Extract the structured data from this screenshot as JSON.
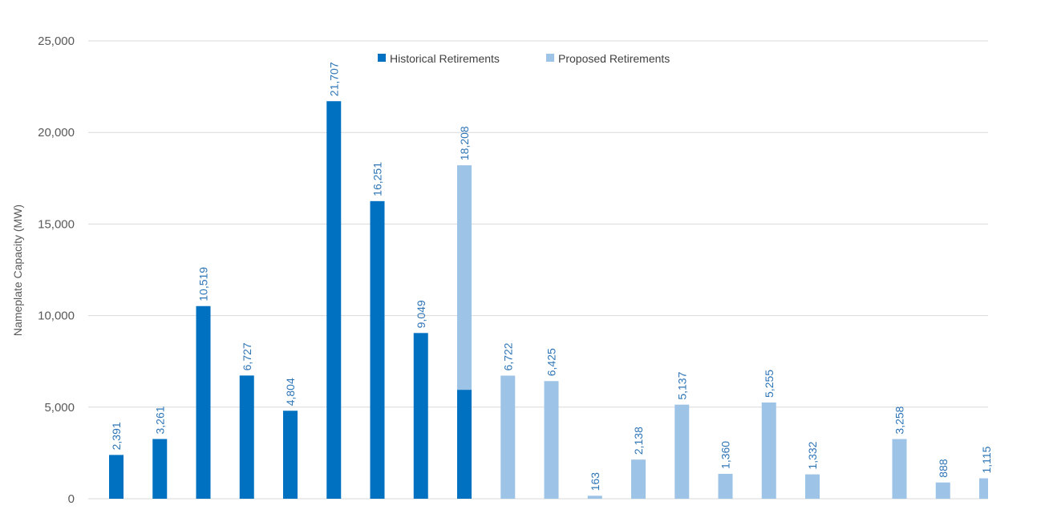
{
  "chart_data": {
    "type": "bar",
    "stacked": true,
    "title": "",
    "xlabel": "",
    "ylabel": "Nameplate Capacity (MW)",
    "ylim": [
      0,
      25000
    ],
    "yticks": [
      0,
      5000,
      10000,
      15000,
      20000,
      25000
    ],
    "ytick_labels": [
      "0",
      "5,000",
      "10,000",
      "15,000",
      "20,000",
      "25,000"
    ],
    "grid": true,
    "legend_position": "top-center",
    "colors": {
      "historical": "#0070C0",
      "proposed": "#9DC3E6",
      "data_label": "#2E75B6"
    },
    "series": [
      {
        "name": "Historical Retirements",
        "values": [
          2391,
          3261,
          10519,
          6727,
          4804,
          21707,
          16251,
          9049,
          5950,
          0,
          0,
          0,
          0,
          0,
          0,
          0,
          0,
          0,
          0,
          0,
          0
        ]
      },
      {
        "name": "Proposed Retirements",
        "values": [
          0,
          0,
          0,
          0,
          0,
          0,
          0,
          0,
          12258,
          6722,
          6425,
          163,
          2138,
          5137,
          1360,
          5255,
          1332,
          0,
          3258,
          888,
          1115
        ]
      }
    ],
    "data_labels": [
      "2,391",
      "3,261",
      "10,519",
      "6,727",
      "4,804",
      "21,707",
      "16,251",
      "9,049",
      "18,208",
      "6,722",
      "6,425",
      "163",
      "2,138",
      "5,137",
      "1,360",
      "5,255",
      "1,332",
      "",
      "3,258",
      "888",
      "1,115"
    ]
  }
}
